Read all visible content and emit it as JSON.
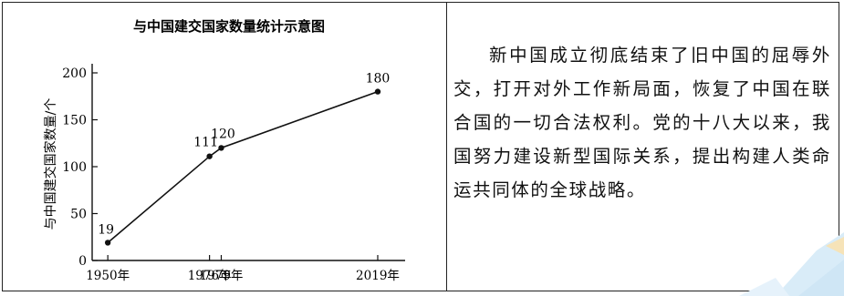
{
  "chart_data": {
    "type": "line",
    "title": "与中国建交国家数量统计示意图",
    "ylabel": "与中国建交国家数量/个",
    "xlabel": "",
    "x": [
      "1950年",
      "1976年",
      "1979年",
      "2019年"
    ],
    "x_numeric": [
      1950,
      1976,
      1979,
      2019
    ],
    "values": [
      19,
      111,
      120,
      180
    ],
    "data_labels": [
      "19",
      "111",
      "120",
      "180"
    ],
    "y_ticks": [
      "0",
      "50",
      "100",
      "150",
      "200"
    ],
    "y_tick_values": [
      0,
      50,
      100,
      150,
      200
    ],
    "ylim": [
      0,
      200
    ],
    "grid": false,
    "colors": {
      "line": "#111111",
      "axis": "#111111"
    }
  },
  "passage": {
    "text": "新中国成立彻底结束了旧中国的屈辱外交，打开对外工作新局面，恢复了中国在联合国的一切合法权利。党的十八大以来，我国努力建设新型国际关系，提出构建人类命运共同体的全球战略。"
  }
}
